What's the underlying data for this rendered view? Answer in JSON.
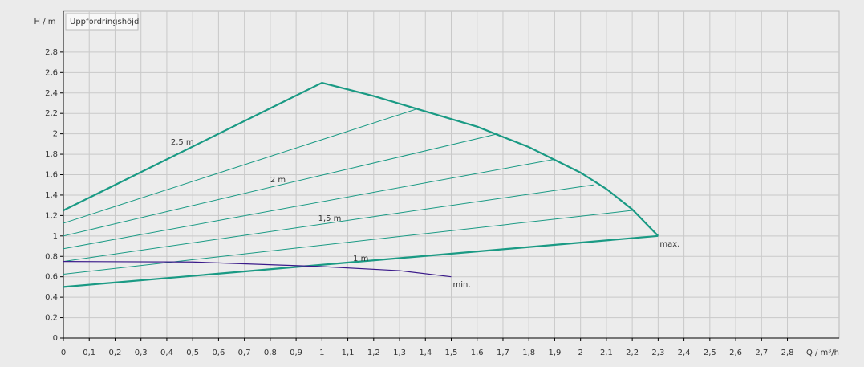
{
  "chart_data": {
    "type": "line",
    "y_label": "H / m",
    "title": "Uppfordringshöjd",
    "x_label": "Q / m³/h",
    "xlim": [
      0,
      3
    ],
    "ylim": [
      0,
      3.2
    ],
    "grid": true,
    "xticks": [
      0,
      {
        "value": 0.1,
        "label": "0,1"
      },
      {
        "value": 0.2,
        "label": "0,2"
      },
      {
        "value": 0.3,
        "label": "0,3"
      },
      {
        "value": 0.4,
        "label": "0,4"
      },
      {
        "value": 0.5,
        "label": "0,5"
      },
      {
        "value": 0.6,
        "label": "0,6"
      },
      {
        "value": 0.7,
        "label": "0,7"
      },
      {
        "value": 0.8,
        "label": "0,8"
      },
      {
        "value": 0.9,
        "label": "0,9"
      },
      1,
      {
        "value": 1.1,
        "label": "1,1"
      },
      {
        "value": 1.2,
        "label": "1,2"
      },
      {
        "value": 1.3,
        "label": "1,3"
      },
      {
        "value": 1.4,
        "label": "1,4"
      },
      {
        "value": 1.5,
        "label": "1,5"
      },
      {
        "value": 1.6,
        "label": "1,6"
      },
      {
        "value": 1.7,
        "label": "1,7"
      },
      {
        "value": 1.8,
        "label": "1,8"
      },
      {
        "value": 1.9,
        "label": "1,9"
      },
      2,
      {
        "value": 2.1,
        "label": "2,1"
      },
      {
        "value": 2.2,
        "label": "2,2"
      },
      {
        "value": 2.3,
        "label": "2,3"
      },
      {
        "value": 2.4,
        "label": "2,4"
      },
      {
        "value": 2.5,
        "label": "2,5"
      },
      {
        "value": 2.6,
        "label": "2,6"
      },
      {
        "value": 2.7,
        "label": "2,7"
      },
      {
        "value": 2.8,
        "label": "2,8"
      }
    ],
    "yticks": [
      0,
      {
        "value": 0.2,
        "label": "0,2"
      },
      {
        "value": 0.4,
        "label": "0,4"
      },
      {
        "value": 0.6,
        "label": "0,6"
      },
      {
        "value": 0.8,
        "label": "0,8"
      },
      1,
      {
        "value": 1.2,
        "label": "1,2"
      },
      {
        "value": 1.4,
        "label": "1,4"
      },
      {
        "value": 1.6,
        "label": "1,6"
      },
      {
        "value": 1.8,
        "label": "1,8"
      },
      2,
      {
        "value": 2.2,
        "label": "2,2"
      },
      {
        "value": 2.4,
        "label": "2,4"
      },
      {
        "value": 2.6,
        "label": "2,6"
      },
      {
        "value": 2.8,
        "label": "2,8"
      }
    ],
    "series": [
      {
        "name": "max.",
        "color": "#1a9a84",
        "width": 2.2,
        "x": [
          0,
          1,
          1.2,
          1.4,
          1.6,
          1.8,
          2.0,
          2.1,
          2.2,
          2.3
        ],
        "values": [
          1.25,
          2.5,
          2.37,
          2.22,
          2.07,
          1.87,
          1.62,
          1.46,
          1.26,
          1.0
        ]
      },
      {
        "color": "#1a9a84",
        "width": 2.2,
        "x": [
          0,
          2.3
        ],
        "values": [
          0.5,
          1.0
        ]
      },
      {
        "color": "#1a9a84",
        "width": 1,
        "x": [
          0,
          1.375
        ],
        "values": [
          1.125,
          2.25
        ]
      },
      {
        "color": "#1a9a84",
        "width": 1,
        "x": [
          0,
          1.68
        ],
        "values": [
          1.0,
          2.0
        ]
      },
      {
        "color": "#1a9a84",
        "width": 1,
        "x": [
          0,
          1.9
        ],
        "values": [
          0.875,
          1.75
        ]
      },
      {
        "color": "#1a9a84",
        "width": 1,
        "x": [
          0,
          2.05
        ],
        "values": [
          0.75,
          1.5
        ]
      },
      {
        "color": "#1a9a84",
        "width": 1,
        "x": [
          0,
          2.2
        ],
        "values": [
          0.625,
          1.25
        ]
      },
      {
        "name": "min.",
        "color": "#3a1a8a",
        "width": 1.2,
        "x": [
          0,
          0.5,
          1.0,
          1.3,
          1.5
        ],
        "values": [
          0.75,
          0.745,
          0.7,
          0.66,
          0.6
        ]
      }
    ],
    "annotations": [
      "2,5 m",
      "2 m",
      "1,5 m",
      "1 m"
    ],
    "annotation_color": "#1a9a84"
  }
}
